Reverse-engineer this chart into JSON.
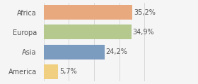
{
  "categories": [
    "Africa",
    "Europa",
    "Asia",
    "America"
  ],
  "values": [
    35.2,
    34.9,
    24.2,
    5.7
  ],
  "labels": [
    "35,2%",
    "34,9%",
    "24,2%",
    "5,7%"
  ],
  "bar_colors": [
    "#e8a97e",
    "#b5c98e",
    "#7b9bbf",
    "#f0d080"
  ],
  "background_color": "#f5f5f5",
  "xlim": [
    0,
    44
  ],
  "bar_height": 0.75,
  "label_fontsize": 7,
  "tick_fontsize": 7,
  "grid_ticks": [
    0,
    10,
    20,
    30,
    40
  ],
  "grid_color": "#cccccc",
  "text_color": "#555555"
}
